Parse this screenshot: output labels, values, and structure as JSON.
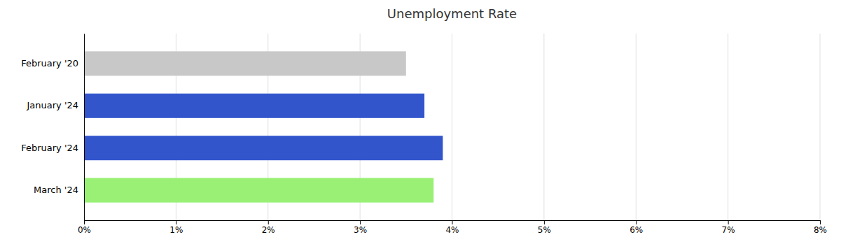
{
  "chart_data": {
    "type": "bar",
    "orientation": "horizontal",
    "title": "Unemployment Rate",
    "categories": [
      "February '20",
      "January '24",
      "February '24",
      "March '24"
    ],
    "values": [
      3.5,
      3.7,
      3.9,
      3.8
    ],
    "colors": [
      "#c8c8c8",
      "#3355cc",
      "#3355cc",
      "#99f075"
    ],
    "xlim": [
      0,
      8
    ],
    "xticks": [
      {
        "value": 0,
        "label": "0%"
      },
      {
        "value": 1,
        "label": "1%"
      },
      {
        "value": 2,
        "label": "2%"
      },
      {
        "value": 3,
        "label": "3%"
      },
      {
        "value": 4,
        "label": "4%"
      },
      {
        "value": 5,
        "label": "5%"
      },
      {
        "value": 6,
        "label": "6%"
      },
      {
        "value": 7,
        "label": "7%"
      },
      {
        "value": 8,
        "label": "8%"
      }
    ],
    "grid": true
  }
}
